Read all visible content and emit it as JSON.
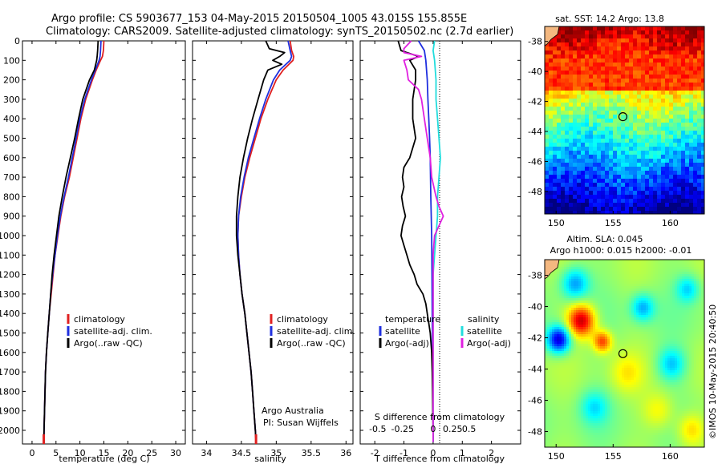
{
  "header": {
    "title_line1": "Argo profile: CS 5903677_153 04-May-2015 20150504_1005 43.015S 155.855E",
    "title_line2": "Climatology: CARS2009. Satellite-adjusted climatology: synTS_20150502.nc (2.7d earlier)"
  },
  "colors": {
    "climatology": "#e02020",
    "satellite": "#1f2fdf",
    "argo": "#000000",
    "sal_sat": "#22dddd",
    "sal_argo": "#e020e0"
  },
  "chart_data": [
    {
      "type": "line",
      "name": "temperature",
      "xlabel": "temperature (deg C)",
      "xlim": [
        -2,
        32
      ],
      "ylim": [
        2070,
        0
      ],
      "xticks": [
        0,
        5,
        10,
        15,
        20,
        25,
        30
      ],
      "yticks": [
        0,
        100,
        200,
        300,
        400,
        500,
        600,
        700,
        800,
        900,
        1000,
        1100,
        1200,
        1300,
        1400,
        1500,
        1600,
        1700,
        1800,
        1900,
        2000
      ],
      "legend": [
        "climatology",
        "satellite-adj. clim.",
        "Argo(..raw -QC)"
      ],
      "series": [
        {
          "name": "climatology",
          "color": "#e02020",
          "depth": [
            0,
            50,
            80,
            100,
            150,
            200,
            300,
            400,
            500,
            600,
            700,
            800,
            900,
            1000,
            1100,
            1200,
            1300,
            1400,
            1500,
            1600,
            1700,
            1800,
            1900,
            2000,
            2060
          ],
          "values": [
            15.0,
            14.9,
            14.7,
            14.3,
            13.4,
            12.6,
            11.2,
            10.2,
            9.4,
            8.6,
            7.8,
            6.8,
            6.0,
            5.4,
            4.8,
            4.4,
            4.0,
            3.6,
            3.3,
            3.0,
            2.8,
            2.7,
            2.6,
            2.5,
            2.45
          ]
        },
        {
          "name": "satellite",
          "color": "#1f2fdf",
          "depth": [
            0,
            50,
            80,
            100,
            150,
            200,
            300,
            400,
            500,
            600,
            700,
            800,
            900,
            1000,
            1100,
            1200,
            1300,
            1400,
            1500,
            1600,
            1700,
            1800,
            1900,
            2000,
            2060
          ],
          "values": [
            14.4,
            14.3,
            14.2,
            14.0,
            13.2,
            12.4,
            11.0,
            10.0,
            9.2,
            8.4,
            7.6,
            6.7,
            5.9,
            5.3,
            4.8,
            4.3,
            3.9,
            3.6,
            3.3,
            3.0,
            2.8,
            2.7,
            2.6,
            2.5,
            2.45
          ]
        },
        {
          "name": "argo",
          "color": "#000000",
          "depth": [
            0,
            50,
            80,
            100,
            150,
            200,
            300,
            400,
            500,
            600,
            700,
            800,
            900,
            1000,
            1100,
            1200,
            1300,
            1400,
            1500,
            1600,
            1700,
            1800,
            1900,
            2000,
            2060
          ],
          "values": [
            13.8,
            13.7,
            13.6,
            13.5,
            13.0,
            12.0,
            10.6,
            9.7,
            8.9,
            8.0,
            7.1,
            6.3,
            5.6,
            5.1,
            4.6,
            4.2,
            3.9,
            3.6,
            3.3,
            3.0,
            2.8,
            2.7,
            2.6,
            2.5,
            2.45
          ]
        }
      ]
    },
    {
      "type": "line",
      "name": "salinity",
      "xlabel": "salinity",
      "xlim": [
        33.8,
        36.1
      ],
      "ylim": [
        2070,
        0
      ],
      "xticks": [
        34,
        34.5,
        35,
        35.5,
        36
      ],
      "legend": [
        "climatology",
        "satellite-adj. clim.",
        "Argo(..raw -QC)"
      ],
      "annotation_line1": "Argo Australia",
      "annotation_line2": "PI: Susan Wijffels",
      "series": [
        {
          "name": "climatology",
          "color": "#e02020",
          "depth": [
            0,
            50,
            80,
            100,
            150,
            200,
            300,
            400,
            500,
            600,
            700,
            800,
            900,
            1000,
            1100,
            1200,
            1300,
            1400,
            1500,
            1600,
            1700,
            1800,
            1900,
            2000,
            2060
          ],
          "values": [
            35.2,
            35.22,
            35.25,
            35.24,
            35.1,
            35.0,
            34.88,
            34.78,
            34.7,
            34.62,
            34.55,
            34.5,
            34.46,
            34.45,
            34.46,
            34.48,
            34.51,
            34.55,
            34.58,
            34.61,
            34.64,
            34.66,
            34.68,
            34.7,
            34.71
          ]
        },
        {
          "name": "satellite",
          "color": "#1f2fdf",
          "depth": [
            0,
            50,
            80,
            100,
            150,
            200,
            300,
            400,
            500,
            600,
            700,
            800,
            900,
            1000,
            1100,
            1200,
            1300,
            1400,
            1500,
            1600,
            1700,
            1800,
            1900,
            2000,
            2060
          ],
          "values": [
            35.17,
            35.2,
            35.22,
            35.2,
            35.05,
            34.96,
            34.85,
            34.76,
            34.68,
            34.6,
            34.54,
            34.49,
            34.46,
            34.45,
            34.46,
            34.48,
            34.51,
            34.55,
            34.58,
            34.61,
            34.64,
            34.66,
            34.68,
            34.7,
            34.71
          ]
        },
        {
          "name": "argo",
          "color": "#000000",
          "depth": [
            0,
            40,
            60,
            80,
            100,
            120,
            150,
            200,
            300,
            400,
            500,
            600,
            700,
            800,
            900,
            1000,
            1100,
            1200,
            1300,
            1400,
            1500,
            1600,
            1700,
            1800,
            1900,
            2000,
            2060
          ],
          "values": [
            34.85,
            34.9,
            35.12,
            35.05,
            34.95,
            35.08,
            34.88,
            34.82,
            34.74,
            34.66,
            34.59,
            34.53,
            34.48,
            34.45,
            34.43,
            34.43,
            34.45,
            34.48,
            34.51,
            34.55,
            34.58,
            34.61,
            34.64,
            34.66,
            34.68,
            34.7,
            34.71
          ]
        }
      ]
    },
    {
      "type": "line",
      "name": "differences",
      "xlabel": "T difference from climatology",
      "xlabel_top": "S difference from climatology",
      "xlim": [
        -2.5,
        3.0
      ],
      "ylim": [
        2070,
        0
      ],
      "xticks": [
        -2,
        -1,
        0,
        1,
        2
      ],
      "xticks_top": [
        "-0.5",
        "-0.25",
        "0",
        "0.25",
        "0.5"
      ],
      "legend_left_title": "temperature",
      "legend_right_title": "salinity",
      "legend_left": [
        "satellite",
        "Argo(-adj)"
      ],
      "legend_right": [
        "satellite",
        "Argo(-adj)"
      ],
      "series": [
        {
          "name": "T satellite",
          "color": "#1f2fdf",
          "depth": [
            0,
            50,
            100,
            200,
            300,
            400,
            500,
            600,
            800,
            1000,
            1200,
            1400,
            1600,
            1800,
            2000,
            2060
          ],
          "values": [
            -0.5,
            -0.3,
            -0.25,
            -0.2,
            -0.18,
            -0.15,
            -0.12,
            -0.1,
            -0.08,
            -0.05,
            -0.04,
            -0.03,
            -0.02,
            -0.01,
            0,
            0
          ]
        },
        {
          "name": "T argo",
          "color": "#000000",
          "depth": [
            0,
            50,
            80,
            100,
            150,
            200,
            300,
            400,
            500,
            600,
            650,
            700,
            750,
            800,
            850,
            900,
            950,
            1000,
            1050,
            1100,
            1150,
            1200,
            1250,
            1300,
            1350,
            1400,
            1450,
            1500,
            1600,
            1700,
            1800,
            1900,
            2000,
            2060
          ],
          "values": [
            -1.2,
            -1.1,
            -0.5,
            -0.8,
            -0.6,
            -0.6,
            -0.7,
            -0.7,
            -0.6,
            -0.8,
            -1.0,
            -1.05,
            -1.0,
            -1.08,
            -1.03,
            -0.95,
            -1.05,
            -1.1,
            -1.0,
            -0.9,
            -0.8,
            -0.65,
            -0.55,
            -0.35,
            -0.25,
            -0.2,
            -0.15,
            -0.1,
            -0.05,
            -0.03,
            -0.02,
            -0.01,
            0,
            0
          ]
        },
        {
          "name": "S satellite",
          "color": "#22dddd",
          "depth": [
            0,
            50,
            100,
            200,
            300,
            400,
            500,
            600,
            700,
            800,
            900,
            1000,
            1100,
            1200,
            1400,
            1600,
            1800,
            2000,
            2060
          ],
          "values": [
            0.05,
            0.0,
            0.05,
            0.1,
            0.1,
            0.15,
            0.2,
            0.25,
            0.2,
            0.15,
            0.15,
            0.1,
            0.05,
            0.0,
            0.0,
            0.0,
            0.0,
            0.0,
            0.0
          ]
        },
        {
          "name": "S argo",
          "color": "#e020e0",
          "depth": [
            0,
            40,
            60,
            80,
            100,
            150,
            200,
            250,
            300,
            400,
            500,
            600,
            700,
            800,
            850,
            900,
            1000,
            1100,
            1200,
            1300,
            1400,
            1600,
            1800,
            2000,
            2060
          ],
          "values": [
            -0.75,
            -1.0,
            -1.0,
            -0.4,
            -1.0,
            -0.9,
            -0.85,
            -0.5,
            -0.4,
            -0.3,
            -0.2,
            -0.1,
            -0.05,
            0.1,
            0.2,
            0.35,
            0.05,
            0.0,
            0.0,
            0.0,
            0.0,
            0.0,
            0.0,
            0.0,
            0.0
          ]
        }
      ]
    },
    {
      "type": "heatmap",
      "name": "sst_map",
      "title": "sat. SST: 14.2  Argo: 13.8",
      "xlim": [
        149,
        163
      ],
      "ylim": [
        -49.5,
        -37
      ],
      "xticks": [
        150,
        155,
        160
      ],
      "yticks": [
        -38,
        -40,
        -42,
        -44,
        -46,
        -48
      ],
      "marker": {
        "lon": 155.855,
        "lat": -43.015
      }
    },
    {
      "type": "heatmap",
      "name": "sla_map",
      "title_line1": "Altim. SLA: 0.045",
      "title_line2": "Argo h1000: 0.015 h2000: -0.01",
      "xlim": [
        149,
        163
      ],
      "ylim": [
        -49,
        -37
      ],
      "xticks": [
        150,
        155,
        160
      ],
      "yticks": [
        -38,
        -40,
        -42,
        -44,
        -46,
        -48
      ],
      "marker": {
        "lon": 155.855,
        "lat": -43.015
      }
    }
  ],
  "side_text": "©IMOS 10-May-2015 20:40:50"
}
